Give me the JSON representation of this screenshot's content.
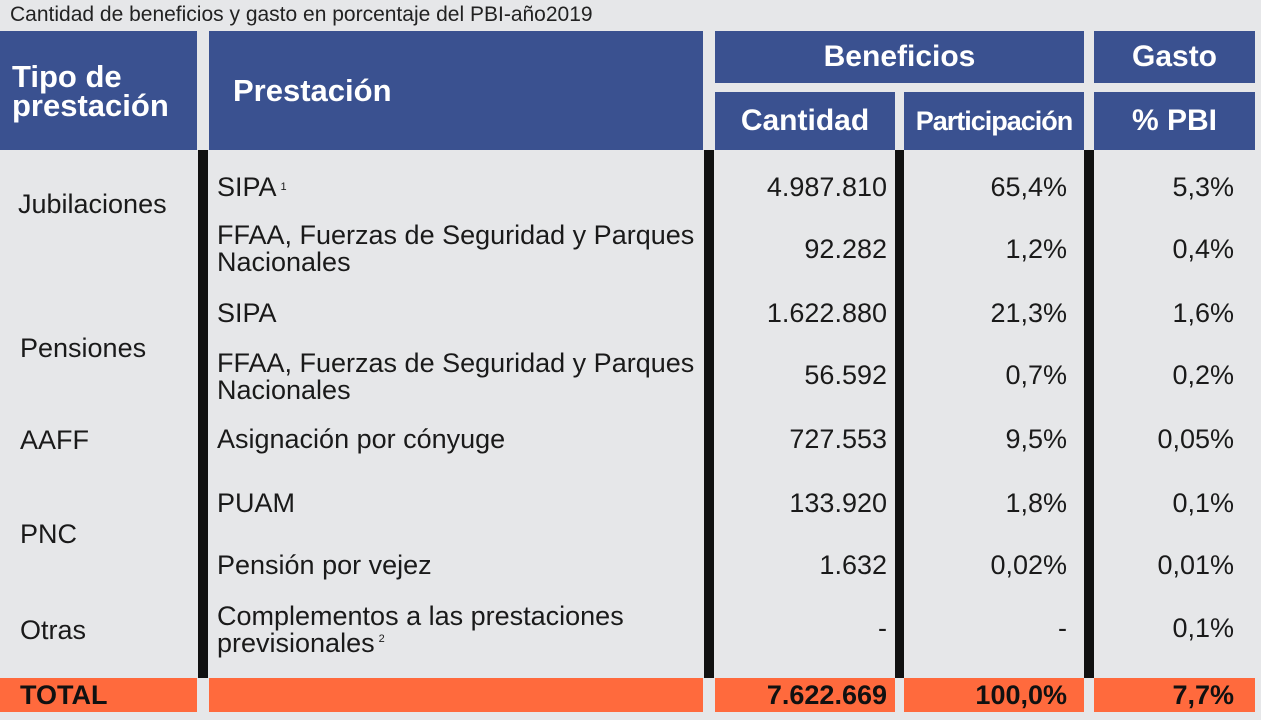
{
  "title": "Cantidad de beneficios y gasto en porcentaje del PBI-año2019",
  "headers": {
    "tipo": "Tipo de prestación",
    "prestacion": "Prestación",
    "beneficios": "Beneficios",
    "gasto": "Gasto",
    "cantidad": "Cantidad",
    "participacion": "Participación",
    "pbi": "% PBI"
  },
  "groups": [
    {
      "label": "Jubilaciones"
    },
    {
      "label": "Pensiones"
    },
    {
      "label": "AAFF"
    },
    {
      "label": "PNC"
    },
    {
      "label": "Otras"
    }
  ],
  "rows": [
    {
      "prestacion": "SIPA",
      "note": "1",
      "cantidad": "4.987.810",
      "participacion": "65,4%",
      "pbi": "5,3%"
    },
    {
      "prestacion": "FFAA, Fuerzas de Seguridad y Parques Nacionales",
      "note": "",
      "cantidad": "92.282",
      "participacion": "1,2%",
      "pbi": "0,4%"
    },
    {
      "prestacion": "SIPA",
      "note": "",
      "cantidad": "1.622.880",
      "participacion": "21,3%",
      "pbi": "1,6%"
    },
    {
      "prestacion": "FFAA, Fuerzas de Seguridad y Parques Nacionales",
      "note": "",
      "cantidad": "56.592",
      "participacion": "0,7%",
      "pbi": "0,2%"
    },
    {
      "prestacion": "Asignación por cónyuge",
      "note": "",
      "cantidad": "727.553",
      "participacion": "9,5%",
      "pbi": "0,05%"
    },
    {
      "prestacion": "PUAM",
      "note": "",
      "cantidad": "133.920",
      "participacion": "1,8%",
      "pbi": "0,1%"
    },
    {
      "prestacion": "Pensión por vejez",
      "note": "",
      "cantidad": "1.632",
      "participacion": "0,02%",
      "pbi": "0,01%"
    },
    {
      "prestacion": "Complementos a las prestaciones previsionales",
      "note": "2",
      "cantidad": "-",
      "participacion": "-",
      "pbi": "0,1%"
    }
  ],
  "total": {
    "label": "TOTAL",
    "cantidad": "7.622.669",
    "participacion": "100,0%",
    "pbi": "7,7%"
  },
  "colors": {
    "header_bg": "#3a5190",
    "total_bg": "#ff6a3d",
    "page_bg": "#e6e7e9",
    "divider": "#111111"
  }
}
